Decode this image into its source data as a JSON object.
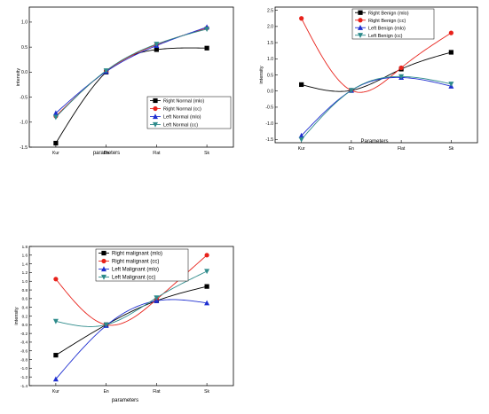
{
  "chart_data": [
    {
      "type": "line",
      "title": "",
      "xlabel": "parameters",
      "ylabel": "intensity",
      "categories": [
        "Kur",
        "En",
        "Flat",
        "Sk"
      ],
      "ylim": [
        -1.5,
        1.3
      ],
      "yticks": [
        "-1.5",
        "-1.0",
        "-0.5",
        "0.0",
        "0.5",
        "1.0"
      ],
      "ytick_values": [
        -1.5,
        -1.0,
        -0.5,
        0.0,
        0.5,
        1.0
      ],
      "legend_position": "bottom-right",
      "series": [
        {
          "name": "Right Normal (mlo)",
          "color": "#000000",
          "marker": "square",
          "values": [
            -1.42,
            0.0,
            0.45,
            0.48
          ]
        },
        {
          "name": "Right Normal (cc)",
          "color": "#e8221b",
          "marker": "circle",
          "values": [
            -0.88,
            0.02,
            0.55,
            0.88
          ]
        },
        {
          "name": "Left Normal (mlo)",
          "color": "#1f2fd0",
          "marker": "triangle-up",
          "values": [
            -0.82,
            0.01,
            0.53,
            0.9
          ]
        },
        {
          "name": "Left Normal (cc)",
          "color": "#2e8b8b",
          "marker": "triangle-down",
          "values": [
            -0.9,
            0.03,
            0.56,
            0.86
          ]
        }
      ]
    },
    {
      "type": "line",
      "title": "",
      "xlabel": "Parameters",
      "ylabel": "intensity",
      "categories": [
        "Kur",
        "En",
        "Flat",
        "Sk"
      ],
      "ylim": [
        -1.6,
        2.6
      ],
      "yticks": [
        "-1.5",
        "-1.0",
        "-0.5",
        "0.0",
        "0.5",
        "1.0",
        "1.5",
        "2.0",
        "2.5"
      ],
      "ytick_values": [
        -1.5,
        -1.0,
        -0.5,
        0.0,
        0.5,
        1.0,
        1.5,
        2.0,
        2.5
      ],
      "legend_position": "top-right",
      "series": [
        {
          "name": "Right Benign (mlo)",
          "color": "#000000",
          "marker": "square",
          "values": [
            0.2,
            0.02,
            0.68,
            1.2
          ]
        },
        {
          "name": "Right Benign (cc)",
          "color": "#e8221b",
          "marker": "circle",
          "values": [
            2.25,
            0.02,
            0.72,
            1.8
          ]
        },
        {
          "name": "Left Benign (mlo)",
          "color": "#1f2fd0",
          "marker": "triangle-up",
          "values": [
            -1.38,
            0.02,
            0.42,
            0.15
          ]
        },
        {
          "name": "Left Benign (cc)",
          "color": "#2e8b8b",
          "marker": "triangle-down",
          "values": [
            -1.5,
            0.02,
            0.45,
            0.22
          ]
        }
      ]
    },
    {
      "type": "line",
      "title": "",
      "xlabel": "parameters",
      "ylabel": "intensity",
      "categories": [
        "Kur",
        "En",
        "Flat",
        "Sk"
      ],
      "ylim": [
        -1.4,
        1.8
      ],
      "yticks": [
        "-1.4",
        "-1.2",
        "-1.0",
        "-0.8",
        "-0.6",
        "-0.4",
        "-0.2",
        "0.0",
        "0.2",
        "0.4",
        "0.6",
        "0.8",
        "1.0",
        "1.2",
        "1.4",
        "1.6",
        "1.8"
      ],
      "ytick_values": [
        -1.4,
        -1.2,
        -1.0,
        -0.8,
        -0.6,
        -0.4,
        -0.2,
        0.0,
        0.2,
        0.4,
        0.6,
        0.8,
        1.0,
        1.2,
        1.4,
        1.6,
        1.8
      ],
      "legend_position": "top",
      "series": [
        {
          "name": "Right malignant (mlo)",
          "color": "#000000",
          "marker": "square",
          "values": [
            -0.7,
            0.0,
            0.55,
            0.88
          ]
        },
        {
          "name": "Right malignant (cc)",
          "color": "#e8221b",
          "marker": "circle",
          "values": [
            1.05,
            0.0,
            0.58,
            1.6
          ]
        },
        {
          "name": "Left Malignant (mlo)",
          "color": "#1f2fd0",
          "marker": "triangle-up",
          "values": [
            -1.25,
            -0.02,
            0.55,
            0.5
          ]
        },
        {
          "name": "Left Malignant (cc)",
          "color": "#2e8b8b",
          "marker": "triangle-down",
          "values": [
            0.08,
            0.0,
            0.62,
            1.23
          ]
        }
      ]
    }
  ]
}
